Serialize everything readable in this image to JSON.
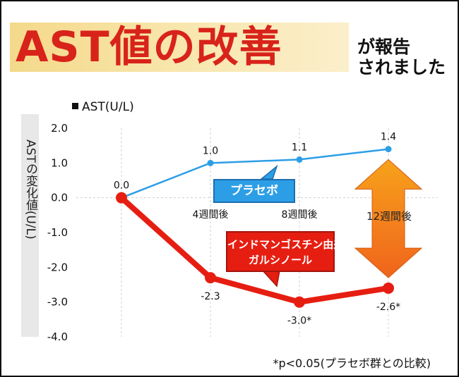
{
  "header": {
    "title": "AST値の改善",
    "subtitle_line1": "が報告",
    "subtitle_line2": "されました"
  },
  "legend": {
    "label": "AST(U/L)"
  },
  "y_axis_label": "ASTの変化値(U/L)",
  "footnote": "*p<0.05(プラセボ群との比較)",
  "callouts": {
    "placebo": "プラセボ",
    "curcuma_line1": "インドマンゴスチン由来",
    "curcuma_line2": "ガルシノール",
    "arrow_label": "12週間後"
  },
  "colors": {
    "placebo": "#2c9ee6",
    "curcuma": "#e61e12",
    "arrow_top": "#f7a21b",
    "arrow_bottom": "#f0641c"
  },
  "chart_data": {
    "type": "line",
    "title": "AST値の改善",
    "ylabel": "ASTの変化値(U/L)",
    "xlabel": "",
    "ylim": [
      -4.0,
      2.0
    ],
    "y_ticks": [
      "2.0",
      "1.0",
      "0.0",
      "-1.0",
      "-2.0",
      "-3.0",
      "-4.0"
    ],
    "categories": [
      "0",
      "4週間後",
      "8週間後",
      "12週間後"
    ],
    "x_labels": [
      "",
      "4週間後",
      "8週間後",
      ""
    ],
    "series": [
      {
        "name": "プラセボ",
        "values": [
          0.0,
          1.0,
          1.1,
          1.4
        ],
        "labels": [
          "0.0",
          "1.0",
          "1.1",
          "1.4"
        ]
      },
      {
        "name": "インドマンゴスチン由来ガルシノール",
        "values": [
          0.0,
          -2.3,
          -3.0,
          -2.6
        ],
        "labels": [
          "",
          "-2.3",
          "-3.0*",
          "-2.6*"
        ]
      }
    ]
  }
}
